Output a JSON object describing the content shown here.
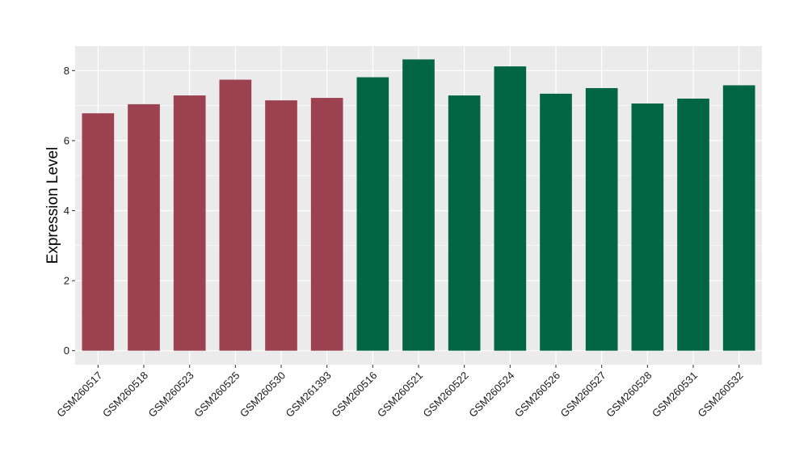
{
  "chart_data": {
    "type": "bar",
    "title": "",
    "xlabel": "",
    "ylabel": "Expression Level",
    "ylim": [
      -0.4,
      8.7
    ],
    "yticks": [
      0,
      2,
      4,
      6,
      8
    ],
    "grid": true,
    "legend": "none",
    "background_color": "#ebebeb",
    "grid_color": "#ffffff",
    "categories": [
      "GSM260517",
      "GSM260518",
      "GSM260523",
      "GSM260525",
      "GSM260530",
      "GSM261393",
      "GSM260516",
      "GSM260521",
      "GSM260522",
      "GSM260524",
      "GSM260526",
      "GSM260527",
      "GSM260528",
      "GSM260531",
      "GSM260532"
    ],
    "values": [
      6.78,
      7.04,
      7.29,
      7.74,
      7.15,
      7.22,
      7.81,
      8.32,
      7.29,
      8.12,
      7.34,
      7.5,
      7.06,
      7.2,
      7.58
    ],
    "bar_colors": [
      "#9b4150",
      "#9b4150",
      "#9b4150",
      "#9b4150",
      "#9b4150",
      "#9b4150",
      "#026645",
      "#026645",
      "#026645",
      "#026645",
      "#026645",
      "#026645",
      "#026645",
      "#026645",
      "#026645"
    ]
  }
}
